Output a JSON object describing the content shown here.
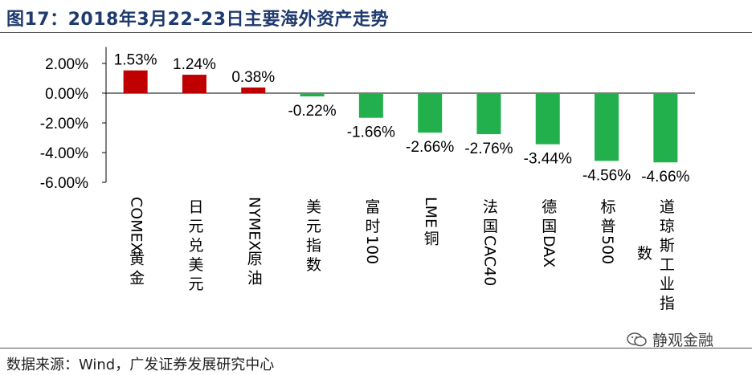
{
  "title": "图17：2018年3月22-23日主要海外资产走势",
  "source": "数据来源：Wind，广发证券发展研究中心",
  "watermark": "静观金融",
  "colors": {
    "positive": "#c00000",
    "negative": "#22b04c",
    "title": "#1f3a6e"
  },
  "chart_data": {
    "type": "bar",
    "categories": [
      "COMEX黄金",
      "日元兑美元",
      "NYMEX原油",
      "美元指数",
      "富时100",
      "LME铜",
      "法国CAC40",
      "德国DAX",
      "标普500",
      "道琼斯工业指数"
    ],
    "values": [
      1.53,
      1.24,
      0.38,
      -0.22,
      -1.66,
      -2.66,
      -2.76,
      -3.44,
      -4.56,
      -4.66
    ],
    "data_labels": [
      "1.53%",
      "1.24%",
      "0.38%",
      "-0.22%",
      "-1.66%",
      "-2.66%",
      "-2.76%",
      "-3.44%",
      "-4.56%",
      "-4.66%"
    ],
    "yticks": [
      "2.00%",
      "0.00%",
      "-2.00%",
      "-4.00%",
      "-6.00%"
    ],
    "ytick_values": [
      2,
      0,
      -2,
      -4,
      -6
    ],
    "ylim": [
      -6,
      3
    ],
    "grid": false,
    "legend": "none"
  }
}
